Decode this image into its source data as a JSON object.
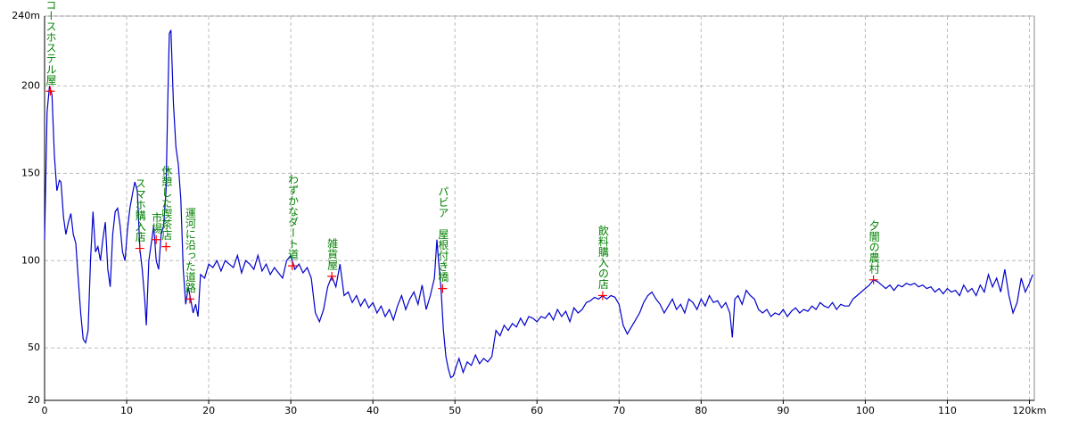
{
  "chart_data": {
    "type": "line",
    "xlim": [
      0,
      120.6
    ],
    "ylim": [
      20,
      240
    ],
    "xticks": [
      0,
      10,
      20,
      30,
      40,
      50,
      60,
      70,
      80,
      90,
      100,
      110,
      {
        "value": 120,
        "label": "120km"
      }
    ],
    "yticks": [
      20,
      50,
      100,
      150,
      200,
      {
        "value": 240,
        "label": "240m"
      }
    ],
    "grid": true,
    "x": [
      0,
      0.3,
      0.6,
      0.9,
      1.2,
      1.5,
      1.8,
      2.0,
      2.3,
      2.6,
      2.9,
      3.2,
      3.5,
      3.8,
      4.1,
      4.4,
      4.7,
      5.0,
      5.3,
      5.6,
      5.9,
      6.2,
      6.5,
      6.8,
      7.1,
      7.4,
      7.7,
      8.0,
      8.3,
      8.6,
      8.9,
      9.2,
      9.5,
      9.8,
      10.1,
      10.4,
      10.7,
      11.0,
      11.3,
      11.6,
      11.9,
      12.2,
      12.4,
      12.7,
      13.0,
      13.3,
      13.6,
      13.9,
      14.2,
      14.5,
      14.8,
      15.0,
      15.2,
      15.4,
      15.7,
      16.0,
      16.3,
      16.6,
      16.9,
      17.2,
      17.5,
      17.8,
      18.1,
      18.4,
      18.7,
      19.0,
      19.5,
      20,
      20.5,
      21,
      21.5,
      22,
      22.5,
      23,
      23.5,
      24,
      24.5,
      25,
      25.5,
      26,
      26.5,
      27,
      27.5,
      28,
      28.5,
      29,
      29.5,
      30,
      30.5,
      31,
      31.5,
      32,
      32.5,
      33,
      33.5,
      34,
      34.5,
      35,
      35.5,
      36,
      36.5,
      37,
      37.5,
      38,
      38.5,
      39,
      39.5,
      40,
      40.5,
      41,
      41.5,
      42,
      42.5,
      43,
      43.5,
      44,
      44.5,
      45,
      45.5,
      46,
      46.5,
      47,
      47.5,
      47.8,
      48,
      48.3,
      48.6,
      48.9,
      49.2,
      49.5,
      49.8,
      50.2,
      50.5,
      51,
      51.5,
      52,
      52.5,
      53,
      53.5,
      54,
      54.5,
      55,
      55.5,
      56,
      56.5,
      57,
      57.5,
      58,
      58.5,
      59,
      59.5,
      60,
      60.5,
      61,
      61.5,
      62,
      62.5,
      63,
      63.5,
      64,
      64.5,
      65,
      65.5,
      66,
      66.5,
      67,
      67.5,
      68,
      68.5,
      69,
      69.5,
      70,
      70.5,
      71,
      71.5,
      72,
      72.5,
      73,
      73.5,
      74,
      74.5,
      75,
      75.5,
      76,
      76.5,
      77,
      77.5,
      78,
      78.5,
      79,
      79.5,
      80,
      80.5,
      81,
      81.5,
      82,
      82.5,
      83,
      83.5,
      83.8,
      84.1,
      84.5,
      85,
      85.5,
      86,
      86.5,
      87,
      87.5,
      88,
      88.5,
      89,
      89.5,
      90,
      90.5,
      91,
      91.5,
      92,
      92.5,
      93,
      93.5,
      94,
      94.5,
      95,
      95.5,
      96,
      96.5,
      97,
      97.5,
      98,
      98.5,
      99,
      99.5,
      100,
      100.5,
      101,
      101.5,
      102,
      102.5,
      103,
      103.5,
      104,
      104.5,
      105,
      105.5,
      106,
      106.5,
      107,
      107.5,
      108,
      108.5,
      109,
      109.5,
      110,
      110.5,
      111,
      111.5,
      112,
      112.5,
      113,
      113.5,
      114,
      114.5,
      115,
      115.5,
      116,
      116.5,
      117,
      117.5,
      118,
      118.5,
      119,
      119.5,
      120,
      120.4
    ],
    "series": [
      {
        "color": "#0000cc",
        "values": [
          112,
          185,
          200,
          195,
          160,
          140,
          146,
          145,
          125,
          115,
          122,
          127,
          115,
          110,
          90,
          70,
          55,
          53,
          60,
          100,
          128,
          105,
          108,
          100,
          112,
          122,
          95,
          85,
          115,
          128,
          130,
          120,
          105,
          100,
          118,
          130,
          138,
          145,
          140,
          107,
          95,
          78,
          63,
          100,
          110,
          120,
          100,
          95,
          115,
          120,
          140,
          190,
          230,
          232,
          190,
          165,
          155,
          135,
          95,
          75,
          85,
          78,
          70,
          75,
          68,
          92,
          90,
          98,
          96,
          100,
          94,
          100,
          98,
          96,
          103,
          93,
          100,
          98,
          95,
          103,
          94,
          98,
          92,
          96,
          93,
          90,
          100,
          103,
          95,
          98,
          93,
          96,
          90,
          70,
          65,
          72,
          85,
          91,
          85,
          98,
          80,
          82,
          76,
          80,
          74,
          78,
          73,
          76,
          70,
          74,
          68,
          72,
          66,
          74,
          80,
          72,
          78,
          82,
          75,
          86,
          72,
          80,
          90,
          112,
          100,
          84,
          60,
          45,
          38,
          33,
          34,
          40,
          44,
          36,
          42,
          40,
          46,
          41,
          44,
          42,
          45,
          60,
          57,
          63,
          60,
          64,
          62,
          67,
          63,
          68,
          67,
          65,
          68,
          67,
          70,
          66,
          72,
          68,
          71,
          65,
          73,
          70,
          72,
          76,
          77,
          79,
          78,
          80,
          78,
          80,
          79,
          75,
          63,
          58,
          62,
          66,
          70,
          76,
          80,
          82,
          78,
          75,
          70,
          74,
          78,
          72,
          75,
          70,
          78,
          76,
          72,
          78,
          74,
          80,
          76,
          77,
          73,
          76,
          70,
          56,
          78,
          80,
          75,
          83,
          80,
          78,
          72,
          70,
          72,
          68,
          70,
          69,
          72,
          68,
          71,
          73,
          70,
          72,
          71,
          74,
          72,
          76,
          74,
          73,
          76,
          72,
          75,
          74,
          74,
          78,
          80,
          82,
          84,
          86,
          89,
          88,
          86,
          84,
          86,
          83,
          86,
          85,
          87,
          86,
          87,
          85,
          86,
          84,
          85,
          82,
          84,
          81,
          84,
          82,
          83,
          80,
          86,
          82,
          84,
          80,
          86,
          82,
          92,
          85,
          90,
          82,
          95,
          80,
          70,
          76,
          90,
          82,
          87,
          92
        ]
      }
    ],
    "waypoint_color": "#008000",
    "marker_color": "#ff0000",
    "annotations": [
      {
        "x": 0.7,
        "y": 197,
        "text": "ミヨシ・コースホステル屋"
      },
      {
        "x": 11.6,
        "y": 107,
        "text": "スマホ購入店"
      },
      {
        "x": 13.6,
        "y": 112,
        "text": "市場"
      },
      {
        "x": 14.8,
        "y": 108,
        "text": "休憩した喫茶店"
      },
      {
        "x": 17.7,
        "y": 78,
        "text": "運河に沿った道路"
      },
      {
        "x": 30.2,
        "y": 97,
        "text": "わずかなダート道"
      },
      {
        "x": 35.0,
        "y": 91,
        "text": "雑貨屋"
      },
      {
        "x": 48.5,
        "y": 84,
        "text": "パビア　屋根付き橋"
      },
      {
        "x": 68.0,
        "y": 80,
        "text": "飲料購入の店"
      },
      {
        "x": 101.0,
        "y": 89,
        "text": "夕闇の農村"
      }
    ]
  }
}
